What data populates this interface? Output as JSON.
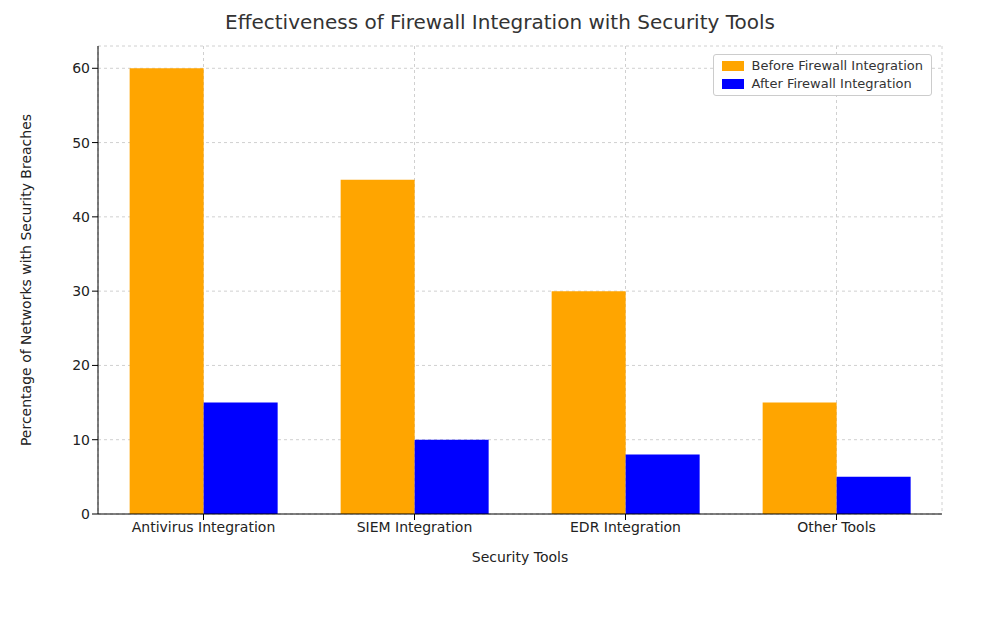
{
  "chart_data": {
    "type": "bar",
    "title": "Effectiveness of Firewall Integration with Security Tools",
    "x_label": "Security Tools",
    "y_label": "Percentage of Networks with Security Breaches",
    "categories": [
      "Antivirus Integration",
      "SIEM Integration",
      "EDR Integration",
      "Other Tools"
    ],
    "series": [
      {
        "name": "Before Firewall Integration",
        "color": "#FFA500",
        "values": [
          60,
          45,
          30,
          15
        ]
      },
      {
        "name": "After Firewall Integration",
        "color": "#0000FF",
        "values": [
          15,
          10,
          8,
          5
        ]
      }
    ],
    "ylim": [
      0,
      63
    ],
    "yticks": [
      0,
      10,
      20,
      30,
      40,
      50,
      60
    ],
    "grid": true,
    "legend": "upper right"
  }
}
